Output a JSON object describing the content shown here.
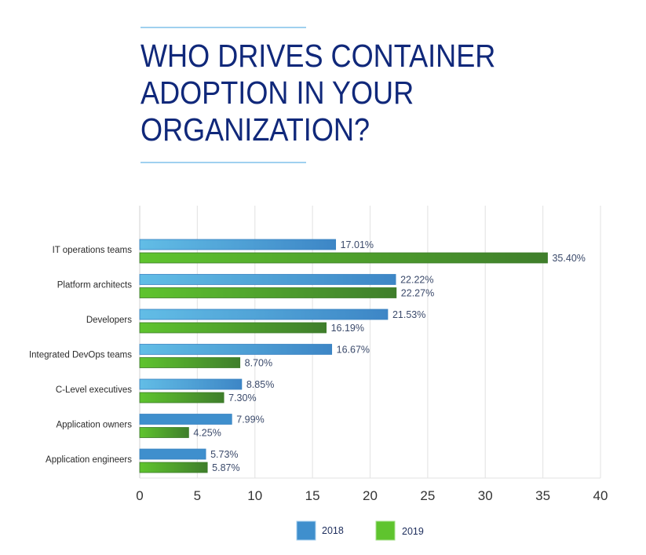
{
  "header": {
    "title": "WHO DRIVES CONTAINER\nADOPTION IN YOUR\nORGANIZATION?"
  },
  "colors": {
    "rule": "#9fd0ef",
    "title": "#10287a",
    "series_2018_light": "#62bde6",
    "series_2018_dark": "#3d86c6",
    "series_2018_solid": "#3f8fcd",
    "series_2019_light": "#5fc42e",
    "series_2019_dark": "#3f7e2b",
    "gridline": "#e6e6e6"
  },
  "chart_data": {
    "type": "bar",
    "orientation": "horizontal",
    "title": "WHO DRIVES CONTAINER ADOPTION IN YOUR ORGANIZATION?",
    "xlabel": "",
    "ylabel": "",
    "xlim": [
      0,
      40
    ],
    "xticks": [
      0,
      5,
      10,
      15,
      20,
      25,
      30,
      35,
      40
    ],
    "xtick_labels": [
      "0",
      "5",
      "10",
      "15",
      "20",
      "25",
      "30",
      "35",
      "40"
    ],
    "grid": true,
    "legend_position": "bottom-center",
    "categories": [
      "IT operations teams",
      "Platform architects",
      "Developers",
      "Integrated DevOps teams",
      "C-Level executives",
      "Application owners",
      "Application engineers"
    ],
    "series": [
      {
        "name": "2018",
        "values": [
          17.01,
          22.22,
          21.53,
          16.67,
          8.85,
          7.99,
          5.73
        ],
        "labels": [
          "17.01%",
          "22.22%",
          "21.53%",
          "16.67%",
          "8.85%",
          "7.99%",
          "5.73%"
        ]
      },
      {
        "name": "2019",
        "values": [
          35.4,
          22.27,
          16.19,
          8.7,
          7.3,
          4.25,
          5.87
        ],
        "labels": [
          "35.40%",
          "22.27%",
          "16.19%",
          "8.70%",
          "7.30%",
          "4.25%",
          "5.87%"
        ]
      }
    ]
  }
}
